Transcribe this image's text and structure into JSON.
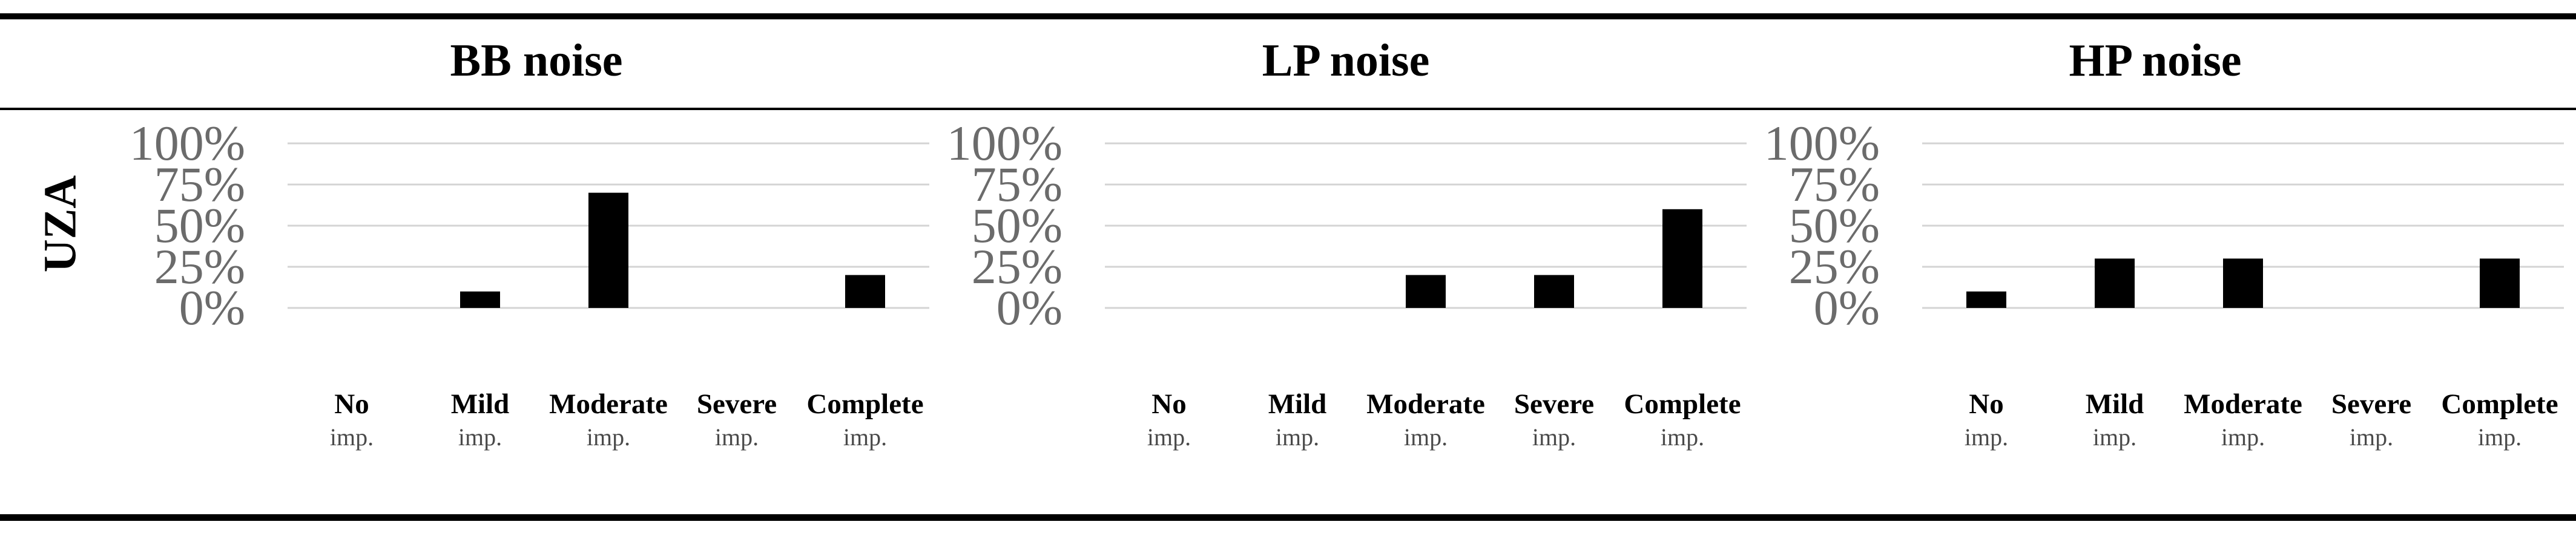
{
  "row_label": "UZA",
  "colors": {
    "bar": "#000000",
    "grid": "#d4d4d4",
    "tick_text": "#6b6b6b",
    "category_sub": "#4a4a4a"
  },
  "chart_data": [
    {
      "type": "bar",
      "title": "BB noise",
      "categories": [
        "No imp.",
        "Mild imp.",
        "Moderate imp.",
        "Severe imp.",
        "Complete imp."
      ],
      "category_lines": [
        [
          "No",
          "imp."
        ],
        [
          "Mild",
          "imp."
        ],
        [
          "Moderate",
          "imp."
        ],
        [
          "Severe",
          "imp."
        ],
        [
          "Complete",
          "imp."
        ]
      ],
      "values": [
        0,
        10,
        70,
        0,
        20
      ],
      "ylim": [
        0,
        100
      ],
      "yticks": [
        "0%",
        "25%",
        "50%",
        "75%",
        "100%"
      ],
      "xlabel": "",
      "ylabel": "",
      "grid": true,
      "legend": false
    },
    {
      "type": "bar",
      "title": "LP noise",
      "categories": [
        "No imp.",
        "Mild imp.",
        "Moderate imp.",
        "Severe imp.",
        "Complete imp."
      ],
      "category_lines": [
        [
          "No",
          "imp."
        ],
        [
          "Mild",
          "imp."
        ],
        [
          "Moderate",
          "imp."
        ],
        [
          "Severe",
          "imp."
        ],
        [
          "Complete",
          "imp."
        ]
      ],
      "values": [
        0,
        0,
        20,
        20,
        60
      ],
      "ylim": [
        0,
        100
      ],
      "yticks": [
        "0%",
        "25%",
        "50%",
        "75%",
        "100%"
      ],
      "xlabel": "",
      "ylabel": "",
      "grid": true,
      "legend": false
    },
    {
      "type": "bar",
      "title": "HP noise",
      "categories": [
        "No imp.",
        "Mild imp.",
        "Moderate imp.",
        "Severe imp.",
        "Complete imp."
      ],
      "category_lines": [
        [
          "No",
          "imp."
        ],
        [
          "Mild",
          "imp."
        ],
        [
          "Moderate",
          "imp."
        ],
        [
          "Severe",
          "imp."
        ],
        [
          "Complete",
          "imp."
        ]
      ],
      "values": [
        10,
        30,
        30,
        0,
        30
      ],
      "ylim": [
        0,
        100
      ],
      "yticks": [
        "0%",
        "25%",
        "50%",
        "75%",
        "100%"
      ],
      "xlabel": "",
      "ylabel": "",
      "grid": true,
      "legend": false
    }
  ]
}
